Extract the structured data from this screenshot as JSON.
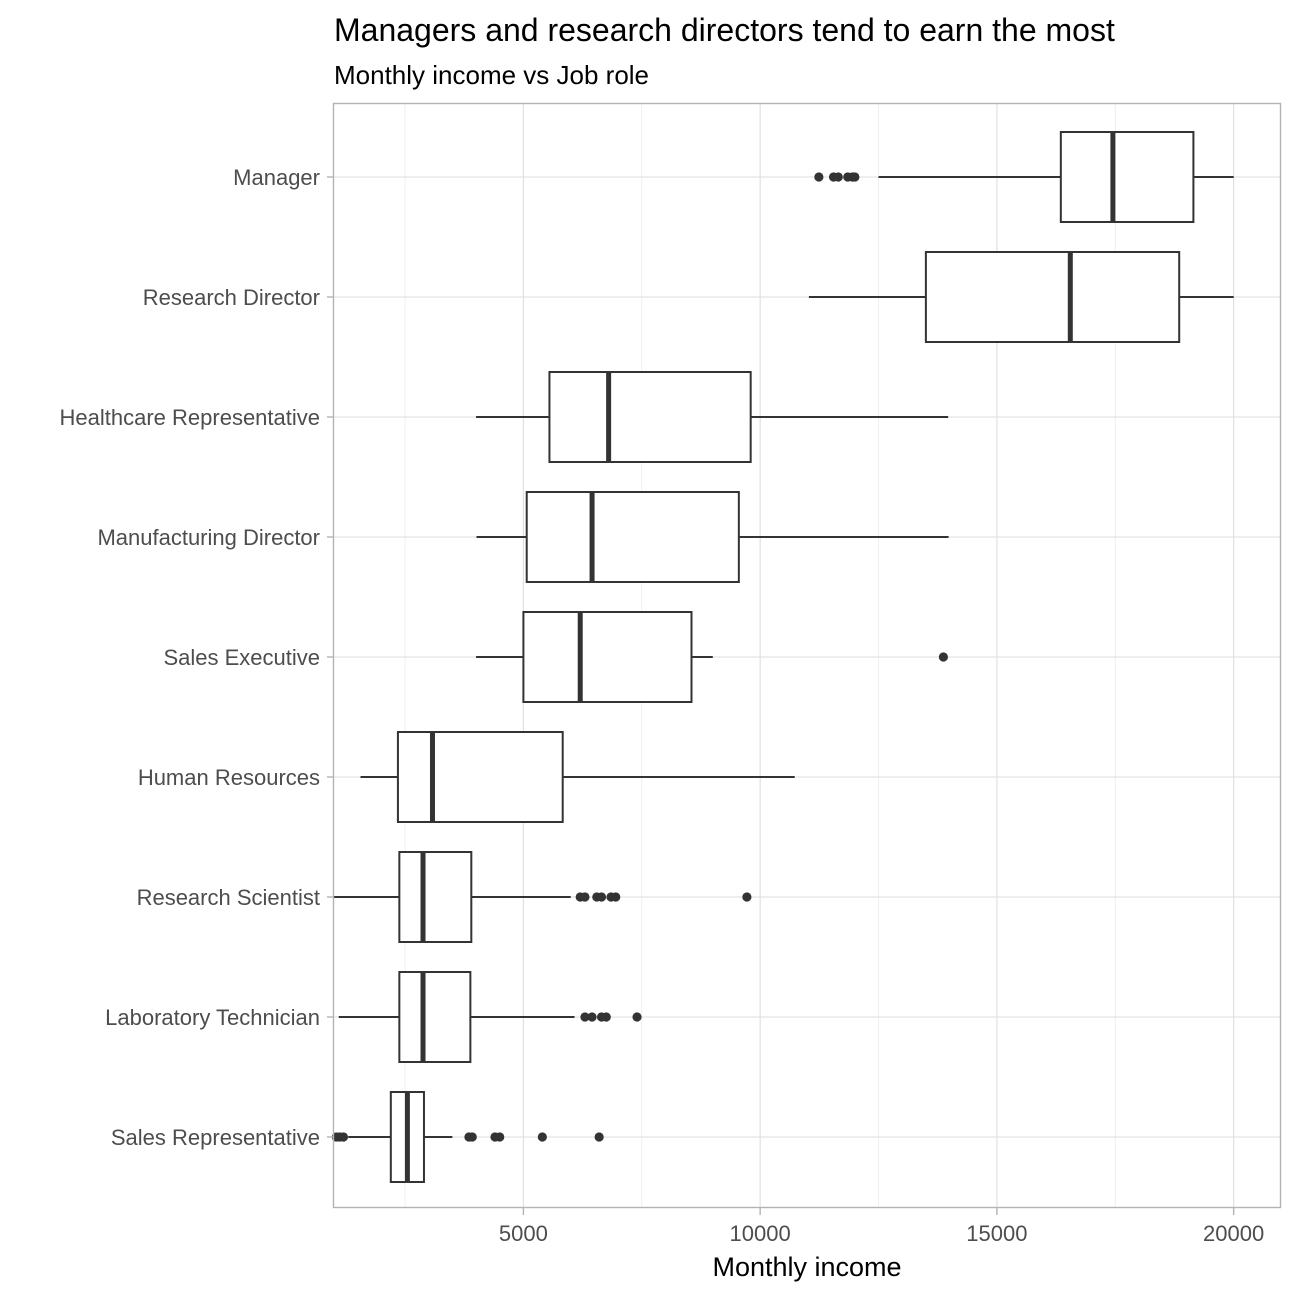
{
  "chart_data": {
    "type": "boxplot",
    "title": "Managers and research directors tend to earn the most",
    "subtitle": "Monthly income vs Job role",
    "xlabel": "Monthly income",
    "ylabel": "",
    "xlim": [
      1000,
      21000
    ],
    "x_ticks": [
      5000,
      10000,
      15000,
      20000
    ],
    "x_tick_labels": [
      "5000",
      "10000",
      "15000",
      "20000"
    ],
    "orientation": "horizontal",
    "grid": true,
    "legend": "none",
    "colors": {
      "box_outline": "#333333",
      "box_fill": "#ffffff",
      "grid": "#dedede",
      "panel_border": "#b3b3b3",
      "tick_text": "#4d4d4d"
    },
    "categories": [
      "Manager",
      "Research Director",
      "Healthcare Representative",
      "Manufacturing Director",
      "Sales Executive",
      "Human Resources",
      "Research Scientist",
      "Laboratory Technician",
      "Sales Representative"
    ],
    "boxes": [
      {
        "category": "Manager",
        "whisker_low": 12500,
        "q1": 16350,
        "median": 17450,
        "q3": 19150,
        "whisker_high": 20000,
        "outliers": [
          11240,
          11550,
          11650,
          11850,
          11950,
          12000
        ]
      },
      {
        "category": "Research Director",
        "whisker_low": 11030,
        "q1": 13500,
        "median": 16550,
        "q3": 18850,
        "whisker_high": 20000,
        "outliers": []
      },
      {
        "category": "Healthcare Representative",
        "whisker_low": 4000,
        "q1": 5550,
        "median": 6800,
        "q3": 9800,
        "whisker_high": 13970,
        "outliers": []
      },
      {
        "category": "Manufacturing Director",
        "whisker_low": 4010,
        "q1": 5070,
        "median": 6450,
        "q3": 9550,
        "whisker_high": 13980,
        "outliers": []
      },
      {
        "category": "Sales Executive",
        "whisker_low": 4000,
        "q1": 5000,
        "median": 6200,
        "q3": 8550,
        "whisker_high": 9000,
        "outliers": [
          13870
        ]
      },
      {
        "category": "Human Resources",
        "whisker_low": 1560,
        "q1": 2350,
        "median": 3080,
        "q3": 5830,
        "whisker_high": 10730,
        "outliers": []
      },
      {
        "category": "Research Scientist",
        "whisker_low": 1000,
        "q1": 2380,
        "median": 2880,
        "q3": 3900,
        "whisker_high": 6000,
        "outliers": [
          6200,
          6300,
          6550,
          6650,
          6850,
          6950,
          9720
        ]
      },
      {
        "category": "Laboratory Technician",
        "whisker_low": 1100,
        "q1": 2380,
        "median": 2880,
        "q3": 3880,
        "whisker_high": 6080,
        "outliers": [
          6300,
          6450,
          6650,
          6750,
          7400
        ]
      },
      {
        "category": "Sales Representative",
        "whisker_low": 1300,
        "q1": 2200,
        "median": 2550,
        "q3": 2900,
        "whisker_high": 3500,
        "outliers": [
          1050,
          1120,
          1200,
          3850,
          3920,
          4400,
          4500,
          5400,
          6600
        ]
      }
    ]
  }
}
